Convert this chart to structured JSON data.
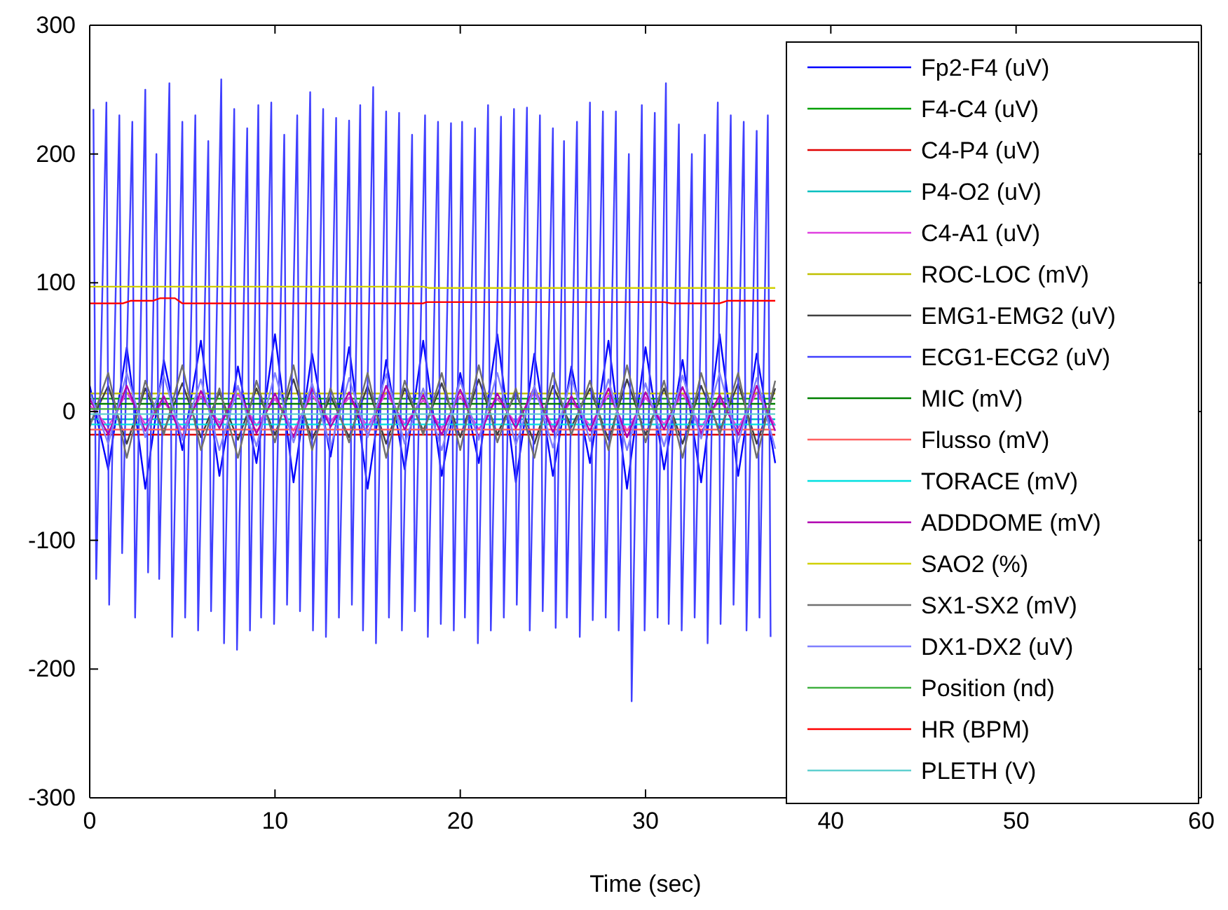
{
  "chart_data": {
    "type": "line",
    "xlabel": "Time (sec)",
    "xlim": [
      0,
      60
    ],
    "ylim": [
      -300,
      300
    ],
    "xticks": [
      0,
      10,
      20,
      30,
      40,
      50,
      60
    ],
    "yticks": [
      -300,
      -200,
      -100,
      0,
      100,
      200,
      300
    ],
    "legend": "right",
    "line_style": "solid",
    "x": [
      0,
      1,
      2,
      3,
      4,
      5,
      6,
      7,
      8,
      9,
      10,
      11,
      12,
      13,
      14,
      15,
      16,
      17,
      18,
      19,
      20,
      21,
      22,
      23,
      24,
      25,
      26,
      27,
      28,
      29,
      30,
      31,
      32,
      33,
      34,
      35,
      36,
      37
    ],
    "series": [
      {
        "name": "Fp2-F4 (uV)",
        "color": "#0000ff",
        "values": [
          20,
          -45,
          50,
          -60,
          40,
          -30,
          55,
          -50,
          35,
          -40,
          60,
          -55,
          45,
          -35,
          50,
          -60,
          40,
          -45,
          55,
          -50,
          30,
          -40,
          60,
          -55,
          45,
          -50,
          35,
          -40,
          55,
          -60,
          50,
          -45,
          40,
          -55,
          60,
          -50,
          45,
          -40
        ]
      },
      {
        "name": "F4-C4 (uV)",
        "color": "#00a000",
        "x": [
          0,
          12,
          24,
          37
        ],
        "values": [
          10,
          10,
          10,
          10
        ]
      },
      {
        "name": "C4-P4 (uV)",
        "color": "#e00000",
        "x": [
          0,
          12,
          24,
          37
        ],
        "values": [
          -18,
          -18,
          -18,
          -18
        ]
      },
      {
        "name": "P4-O2 (uV)",
        "color": "#00c0c0",
        "x": [
          0,
          12,
          24,
          37
        ],
        "values": [
          -6,
          -6,
          -6,
          -6
        ]
      },
      {
        "name": "C4-A1 (uV)",
        "color": "#e040e0",
        "values": [
          5,
          -12,
          15,
          -10,
          8,
          -14,
          12,
          -9,
          14,
          -11,
          10,
          -15,
          13,
          -8,
          11,
          -12,
          15,
          -10,
          9,
          -13,
          12,
          -14,
          10,
          -9,
          15,
          -12,
          8,
          -11,
          13,
          -15,
          11,
          -10,
          14,
          -12,
          9,
          -13,
          15,
          -11
        ]
      },
      {
        "name": "ROC-LOC (mV)",
        "color": "#c0c000",
        "x": [
          0,
          12,
          24,
          37
        ],
        "values": [
          14,
          14,
          14,
          14
        ]
      },
      {
        "name": "EMG1-EMG2 (uV)",
        "color": "#404040",
        "values": [
          -10,
          20,
          -25,
          18,
          -15,
          22,
          -20,
          15,
          -22,
          18,
          -18,
          25,
          -22,
          12,
          -20,
          20,
          -25,
          18,
          -15,
          22,
          -20,
          25,
          -18,
          15,
          -25,
          20,
          -12,
          18,
          -22,
          25,
          -18,
          18,
          -25,
          20,
          -15,
          22,
          -25,
          18
        ]
      },
      {
        "name": "ECG1-ECG2 (uV)",
        "color": "#4040ff",
        "x": [
          0.2,
          0.35,
          0.9,
          1.05,
          1.6,
          1.75,
          2.3,
          2.45,
          3.0,
          3.15,
          3.6,
          3.75,
          4.3,
          4.45,
          5.0,
          5.15,
          5.7,
          5.85,
          6.4,
          6.55,
          7.1,
          7.25,
          7.8,
          7.95,
          8.5,
          8.65,
          9.1,
          9.25,
          9.8,
          9.95,
          10.5,
          10.65,
          11.2,
          11.35,
          11.9,
          12.05,
          12.6,
          12.75,
          13.3,
          13.45,
          14.0,
          14.15,
          14.6,
          14.75,
          15.3,
          15.45,
          16.0,
          16.15,
          16.7,
          16.85,
          17.4,
          17.55,
          18.1,
          18.25,
          18.8,
          18.95,
          19.5,
          19.65,
          20.1,
          20.25,
          20.8,
          20.95,
          21.5,
          21.65,
          22.2,
          22.35,
          22.9,
          23.05,
          23.6,
          23.75,
          24.3,
          24.45,
          25.0,
          25.15,
          25.6,
          25.75,
          26.3,
          26.45,
          27.0,
          27.15,
          27.7,
          27.85,
          28.4,
          28.55,
          29.1,
          29.25,
          29.8,
          29.95,
          30.5,
          30.65,
          31.1,
          31.25,
          31.8,
          31.95,
          32.5,
          32.65,
          33.2,
          33.35,
          33.9,
          34.05,
          34.6,
          34.75,
          35.3,
          35.45,
          36.0,
          36.15,
          36.6,
          36.75
        ],
        "values": [
          235,
          -130,
          240,
          -150,
          230,
          -110,
          225,
          -160,
          250,
          -125,
          200,
          -130,
          255,
          -175,
          225,
          -160,
          230,
          -170,
          210,
          -155,
          258,
          -180,
          235,
          -185,
          220,
          -170,
          238,
          -160,
          240,
          -165,
          215,
          -150,
          230,
          -155,
          248,
          -170,
          235,
          -175,
          228,
          -160,
          226,
          -150,
          238,
          -170,
          252,
          -180,
          233,
          -160,
          232,
          -170,
          215,
          -155,
          230,
          -175,
          225,
          -165,
          224,
          -170,
          225,
          -160,
          220,
          -180,
          238,
          -170,
          229,
          -160,
          235,
          -150,
          236,
          -170,
          230,
          -155,
          220,
          -168,
          210,
          -160,
          225,
          -175,
          240,
          -162,
          233,
          -160,
          233,
          -170,
          200,
          -225,
          238,
          -170,
          232,
          -160,
          255,
          -165,
          223,
          -170,
          200,
          -160,
          215,
          -180,
          240,
          -165,
          230,
          -150,
          225,
          -170,
          218,
          -160,
          230,
          -175
        ]
      },
      {
        "name": "MIC (mV)",
        "color": "#008000",
        "x": [
          0,
          12,
          24,
          37
        ],
        "values": [
          6,
          6,
          6,
          6
        ]
      },
      {
        "name": "Flusso (mV)",
        "color": "#ff6060",
        "x": [
          0,
          12,
          24,
          37
        ],
        "values": [
          -14,
          -14,
          -14,
          -14
        ]
      },
      {
        "name": "TORACE (mV)",
        "color": "#00e0e0",
        "x": [
          0,
          12,
          24,
          37
        ],
        "values": [
          -10,
          -10,
          -10,
          -10
        ]
      },
      {
        "name": "ADDDOME (mV)",
        "color": "#b000b0",
        "values": [
          10,
          -18,
          20,
          -15,
          12,
          -20,
          16,
          -13,
          19,
          -17,
          14,
          -20,
          18,
          -12,
          15,
          -19,
          20,
          -14,
          13,
          -18,
          17,
          -20,
          14,
          -13,
          19,
          -16,
          12,
          -15,
          18,
          -20,
          15,
          -14,
          19,
          -17,
          13,
          -18,
          20,
          -15
        ]
      },
      {
        "name": "SAO2 (%)",
        "color": "#d0d000",
        "x": [
          0,
          18,
          18.3,
          37
        ],
        "values": [
          97,
          97,
          96,
          96
        ]
      },
      {
        "name": "SX1-SX2 (mV)",
        "color": "#707070",
        "values": [
          -12,
          30,
          -36,
          24,
          -18,
          36,
          -30,
          18,
          -36,
          24,
          -24,
          36,
          -30,
          18,
          -24,
          30,
          -36,
          24,
          -18,
          30,
          -30,
          36,
          -24,
          18,
          -36,
          30,
          -18,
          24,
          -30,
          36,
          -24,
          24,
          -36,
          30,
          -18,
          30,
          -36,
          24
        ]
      },
      {
        "name": "DX1-DX2 (uV)",
        "color": "#8080ff",
        "values": [
          15,
          -25,
          30,
          -20,
          28,
          -22,
          25,
          -30,
          20,
          -27,
          30,
          -24,
          22,
          -28,
          26,
          -20,
          29,
          -25,
          18,
          -30,
          24,
          -22,
          30,
          -26,
          20,
          -28,
          27,
          -23,
          25,
          -30,
          22,
          -27,
          28,
          -21,
          30,
          -24,
          26,
          -29
        ]
      },
      {
        "name": "Position (nd)",
        "color": "#40b040",
        "x": [
          0,
          12,
          24,
          37
        ],
        "values": [
          2,
          2,
          2,
          2
        ]
      },
      {
        "name": "HR (BPM)",
        "color": "#ff0000",
        "x": [
          0,
          1.8,
          2.2,
          3.4,
          3.8,
          4.6,
          5.0,
          18,
          18.2,
          31,
          31.4,
          34,
          34.4,
          37
        ],
        "values": [
          84,
          84,
          86,
          86,
          88,
          88,
          84,
          84,
          85,
          85,
          84,
          84,
          86,
          86
        ]
      },
      {
        "name": "PLETH (V)",
        "color": "#60d0d0",
        "x": [
          0,
          12,
          24,
          37
        ],
        "values": [
          -2,
          -2,
          -2,
          -2
        ]
      }
    ]
  }
}
